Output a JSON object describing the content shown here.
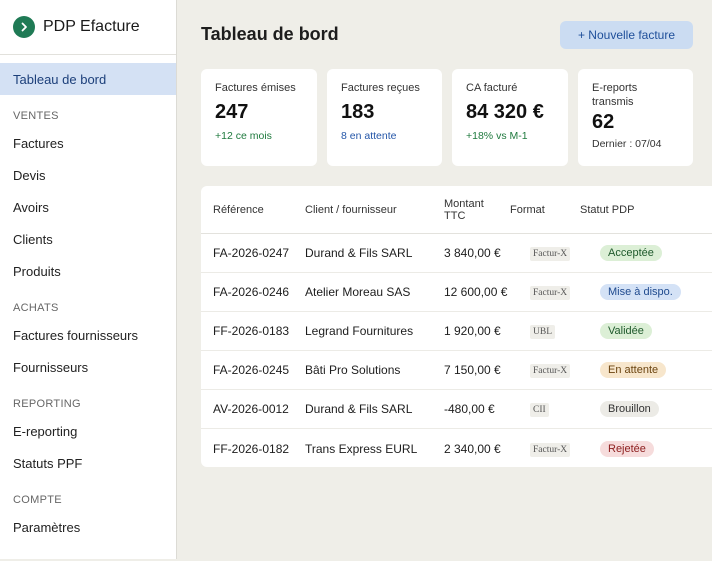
{
  "brand": {
    "name": "PDP Efacture",
    "logo_icon": "chevron-right-icon"
  },
  "sidebar": {
    "top": [
      {
        "label": "Tableau de bord",
        "active": true
      }
    ],
    "sections": [
      {
        "title": "VENTES",
        "items": [
          "Factures",
          "Devis",
          "Avoirs",
          "Clients",
          "Produits"
        ]
      },
      {
        "title": "ACHATS",
        "items": [
          "Factures fournisseurs",
          "Fournisseurs"
        ]
      },
      {
        "title": "REPORTING",
        "items": [
          "E-reporting",
          "Statuts PPF"
        ]
      },
      {
        "title": "COMPTE",
        "items": [
          "Paramètres"
        ]
      }
    ]
  },
  "header": {
    "title": "Tableau de bord",
    "new_invoice_label": "+ Nouvelle facture"
  },
  "cards": [
    {
      "label": "Factures émises",
      "value": "247",
      "sub": "+12 ce mois",
      "sub_color": "green"
    },
    {
      "label": "Factures reçues",
      "value": "183",
      "sub": "8 en attente",
      "sub_color": "blue"
    },
    {
      "label": "CA facturé",
      "value": "84 320 €",
      "sub": "+18% vs M-1",
      "sub_color": "green"
    },
    {
      "label": "E-reports transmis",
      "value": "62",
      "sub": "Dernier : 07/04",
      "sub_color": "dark"
    }
  ],
  "table": {
    "headers": [
      "Référence",
      "Client / fournisseur",
      "Montant TTC",
      "Format",
      "Statut PDP"
    ],
    "rows": [
      {
        "ref": "FA-2026-0247",
        "client": "Durand & Fils SARL",
        "amount": "3 840,00 €",
        "format": "Factur-X",
        "status": "Acceptée",
        "status_bg": "#dcefd6",
        "status_fg": "#1f5a2c"
      },
      {
        "ref": "FA-2026-0246",
        "client": "Atelier Moreau SAS",
        "amount": "12 600,00 €",
        "format": "Factur-X",
        "status": "Mise à dispo.",
        "status_bg": "#d4e2f6",
        "status_fg": "#1f4a8e"
      },
      {
        "ref": "FF-2026-0183",
        "client": "Legrand Fournitures",
        "amount": "1 920,00 €",
        "format": "UBL",
        "status": "Validée",
        "status_bg": "#dcefd6",
        "status_fg": "#1f5a2c"
      },
      {
        "ref": "FA-2026-0245",
        "client": "Bâti Pro Solutions",
        "amount": "7 150,00 €",
        "format": "Factur-X",
        "status": "En attente",
        "status_bg": "#f7e6cc",
        "status_fg": "#6b4410"
      },
      {
        "ref": "AV-2026-0012",
        "client": "Durand & Fils SARL",
        "amount": "-480,00 €",
        "format": "CII",
        "status": "Brouillon",
        "status_bg": "#ecebe6",
        "status_fg": "#333333"
      },
      {
        "ref": "FF-2026-0182",
        "client": "Trans Express EURL",
        "amount": "2 340,00 €",
        "format": "Factur-X",
        "status": "Rejetée",
        "status_bg": "#f6dcdc",
        "status_fg": "#8e2020"
      }
    ]
  }
}
